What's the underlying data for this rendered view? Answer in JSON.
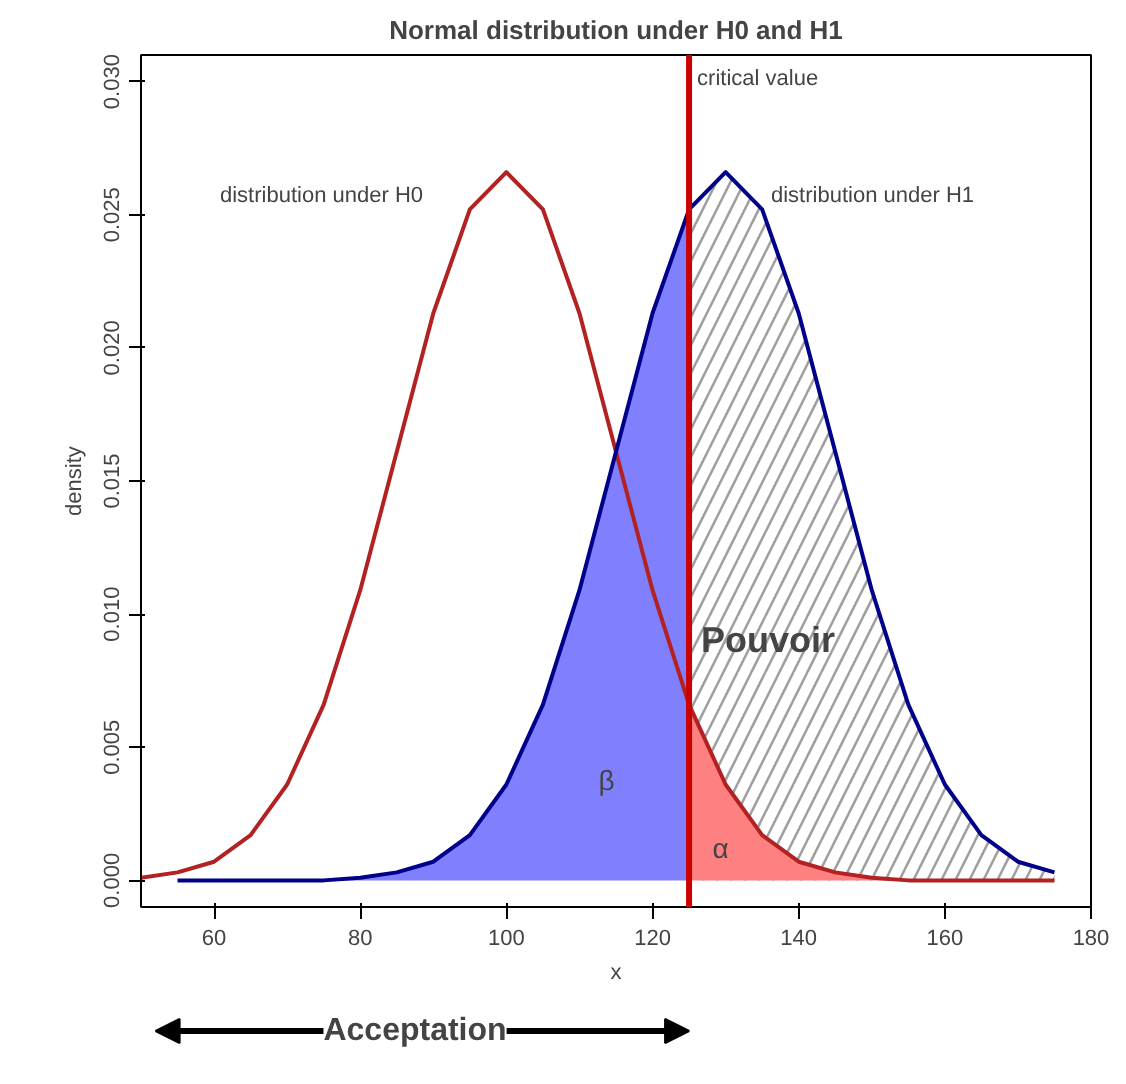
{
  "chart_data": {
    "type": "line",
    "title": "Normal distribution under H0 and H1",
    "xlabel": "x",
    "ylabel": "density",
    "xlim": [
      50,
      180
    ],
    "ylim": [
      -0.001,
      0.031
    ],
    "xticks": [
      60,
      80,
      100,
      120,
      140,
      160,
      180
    ],
    "yticks": [
      {
        "value": 0,
        "label": "0.000"
      },
      {
        "value": 0.005,
        "label": "0.005"
      },
      {
        "value": 0.01,
        "label": "0.010"
      },
      {
        "value": 0.015,
        "label": "0.015"
      },
      {
        "value": 0.02,
        "label": "0.020"
      },
      {
        "value": 0.025,
        "label": "0.025"
      },
      {
        "value": 0.03,
        "label": "0.030"
      }
    ],
    "grid": false,
    "series": [
      {
        "type": "area",
        "color": "#8080ff",
        "x": [
          55,
          60,
          65,
          70,
          75,
          80,
          85,
          90,
          95,
          100,
          105,
          110,
          115,
          120,
          125
        ],
        "values": [
          0,
          0,
          0,
          0,
          0,
          0.0001,
          0.0003,
          0.0007,
          0.0017,
          0.0036,
          0.0066,
          0.0109,
          0.0161,
          0.0213,
          0.0252
        ]
      },
      {
        "type": "area",
        "color": "#a0a0a0",
        "line_style": "dashed",
        "x": [
          125,
          130,
          135,
          140,
          145,
          150,
          155,
          160,
          165,
          170,
          175
        ],
        "values": [
          0.0252,
          0.0266,
          0.0252,
          0.0213,
          0.0161,
          0.0109,
          0.0066,
          0.0036,
          0.0017,
          0.0007,
          0.0003
        ]
      },
      {
        "type": "area",
        "color": "#ff8080",
        "x": [
          125,
          130,
          135,
          140,
          145,
          150,
          155,
          160,
          165,
          170,
          175
        ],
        "values": [
          0.0066,
          0.0036,
          0.0017,
          0.0007,
          0.0003,
          0.0001,
          0,
          0,
          0,
          0,
          0
        ]
      },
      {
        "color": "#b22222",
        "x": [
          50,
          55,
          60,
          65,
          70,
          75,
          80,
          85,
          90,
          95,
          100,
          105,
          110,
          115,
          120,
          125,
          130,
          135,
          140,
          145,
          150,
          155,
          160,
          165,
          170,
          175
        ],
        "values": [
          0.0001,
          0.0003,
          0.0007,
          0.0017,
          0.0036,
          0.0066,
          0.0109,
          0.0161,
          0.0213,
          0.0252,
          0.0266,
          0.0252,
          0.0213,
          0.0161,
          0.0109,
          0.0066,
          0.0036,
          0.0017,
          0.0007,
          0.0003,
          0.0001,
          0,
          0,
          0,
          0,
          0
        ]
      },
      {
        "color": "#00008b",
        "x": [
          55,
          60,
          65,
          70,
          75,
          80,
          85,
          90,
          95,
          100,
          105,
          110,
          115,
          120,
          125,
          130,
          135,
          140,
          145,
          150,
          155,
          160,
          165,
          170,
          175
        ],
        "values": [
          0,
          0,
          0,
          0,
          0,
          0.0001,
          0.0003,
          0.0007,
          0.0017,
          0.0036,
          0.0066,
          0.0109,
          0.0161,
          0.0213,
          0.0252,
          0.0266,
          0.0252,
          0.0213,
          0.0161,
          0.0109,
          0.0066,
          0.0036,
          0.0017,
          0.0007,
          0.0003
        ]
      }
    ],
    "ref_lines": [
      {
        "axis": "x",
        "value": 125,
        "label": "critical value",
        "color": "#cc0000"
      }
    ],
    "annotations": [
      "distribution under H0",
      "distribution under H1",
      "β",
      "α",
      "Pouvoir",
      "Acceptation"
    ]
  }
}
